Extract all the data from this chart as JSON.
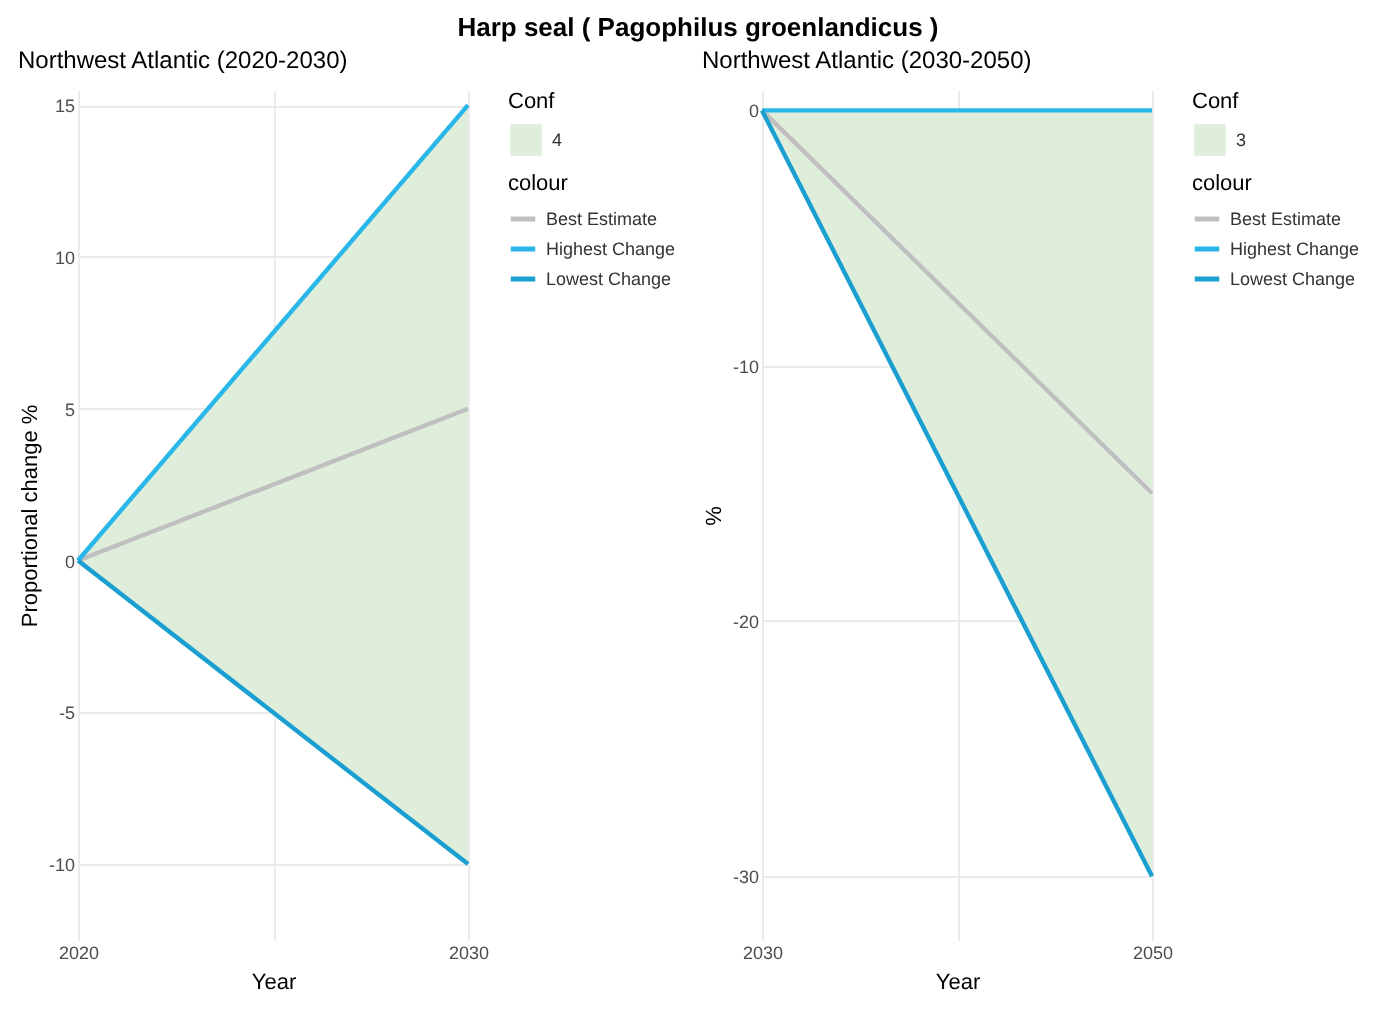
{
  "chart_data": [
    {
      "type": "line",
      "title": "Harp seal ( Pagophilus groenlandicus )",
      "subtitle": "Northwest Atlantic (2020-2030)",
      "xlabel": "Year",
      "ylabel": "Proportional change %",
      "legend_title": "colour",
      "annotations": [
        "Conf",
        "4"
      ],
      "x": [
        2020,
        2030
      ],
      "xlim": [
        2020,
        2030
      ],
      "xticks": [
        2020,
        {
          "value": 2025,
          "label": null
        },
        2030
      ],
      "ylim": [
        -12.5,
        15.5
      ],
      "yticks": [
        -10,
        -5,
        0,
        5,
        10,
        15
      ],
      "grid": true,
      "legend": "right",
      "marker": "none",
      "series": [
        {
          "name": "Best Estimate",
          "color": "#bfbfbf",
          "values": [
            0,
            5
          ],
          "lower": [
            0,
            -10
          ],
          "upper": [
            0,
            15
          ]
        },
        {
          "name": "Highest Change",
          "color": "#29b6e8",
          "values": [
            0,
            15
          ]
        },
        {
          "name": "Lowest Change",
          "color": "#1a9fd0",
          "values": [
            0,
            -10
          ]
        }
      ]
    },
    {
      "type": "line",
      "subtitle": "Northwest Atlantic (2030-2050)",
      "xlabel": "Year",
      "ylabel": "%",
      "legend_title": "colour",
      "annotations": [
        "Conf",
        "3"
      ],
      "x": [
        2030,
        2050
      ],
      "xlim": [
        2030,
        2050
      ],
      "xticks": [
        2030,
        {
          "value": 2040,
          "label": null
        },
        2050
      ],
      "ylim": [
        -32.5,
        0.8
      ],
      "yticks": [
        -30,
        -20,
        -10,
        0
      ],
      "grid": true,
      "legend": "right",
      "marker": "none",
      "series": [
        {
          "name": "Best Estimate",
          "color": "#bfbfbf",
          "values": [
            0,
            -15
          ],
          "lower": [
            0,
            -30
          ],
          "upper": [
            0,
            0
          ]
        },
        {
          "name": "Highest Change",
          "color": "#29b6e8",
          "values": [
            0,
            0
          ]
        },
        {
          "name": "Lowest Change",
          "color": "#1a9fd0",
          "values": [
            0,
            -30
          ]
        }
      ]
    }
  ]
}
